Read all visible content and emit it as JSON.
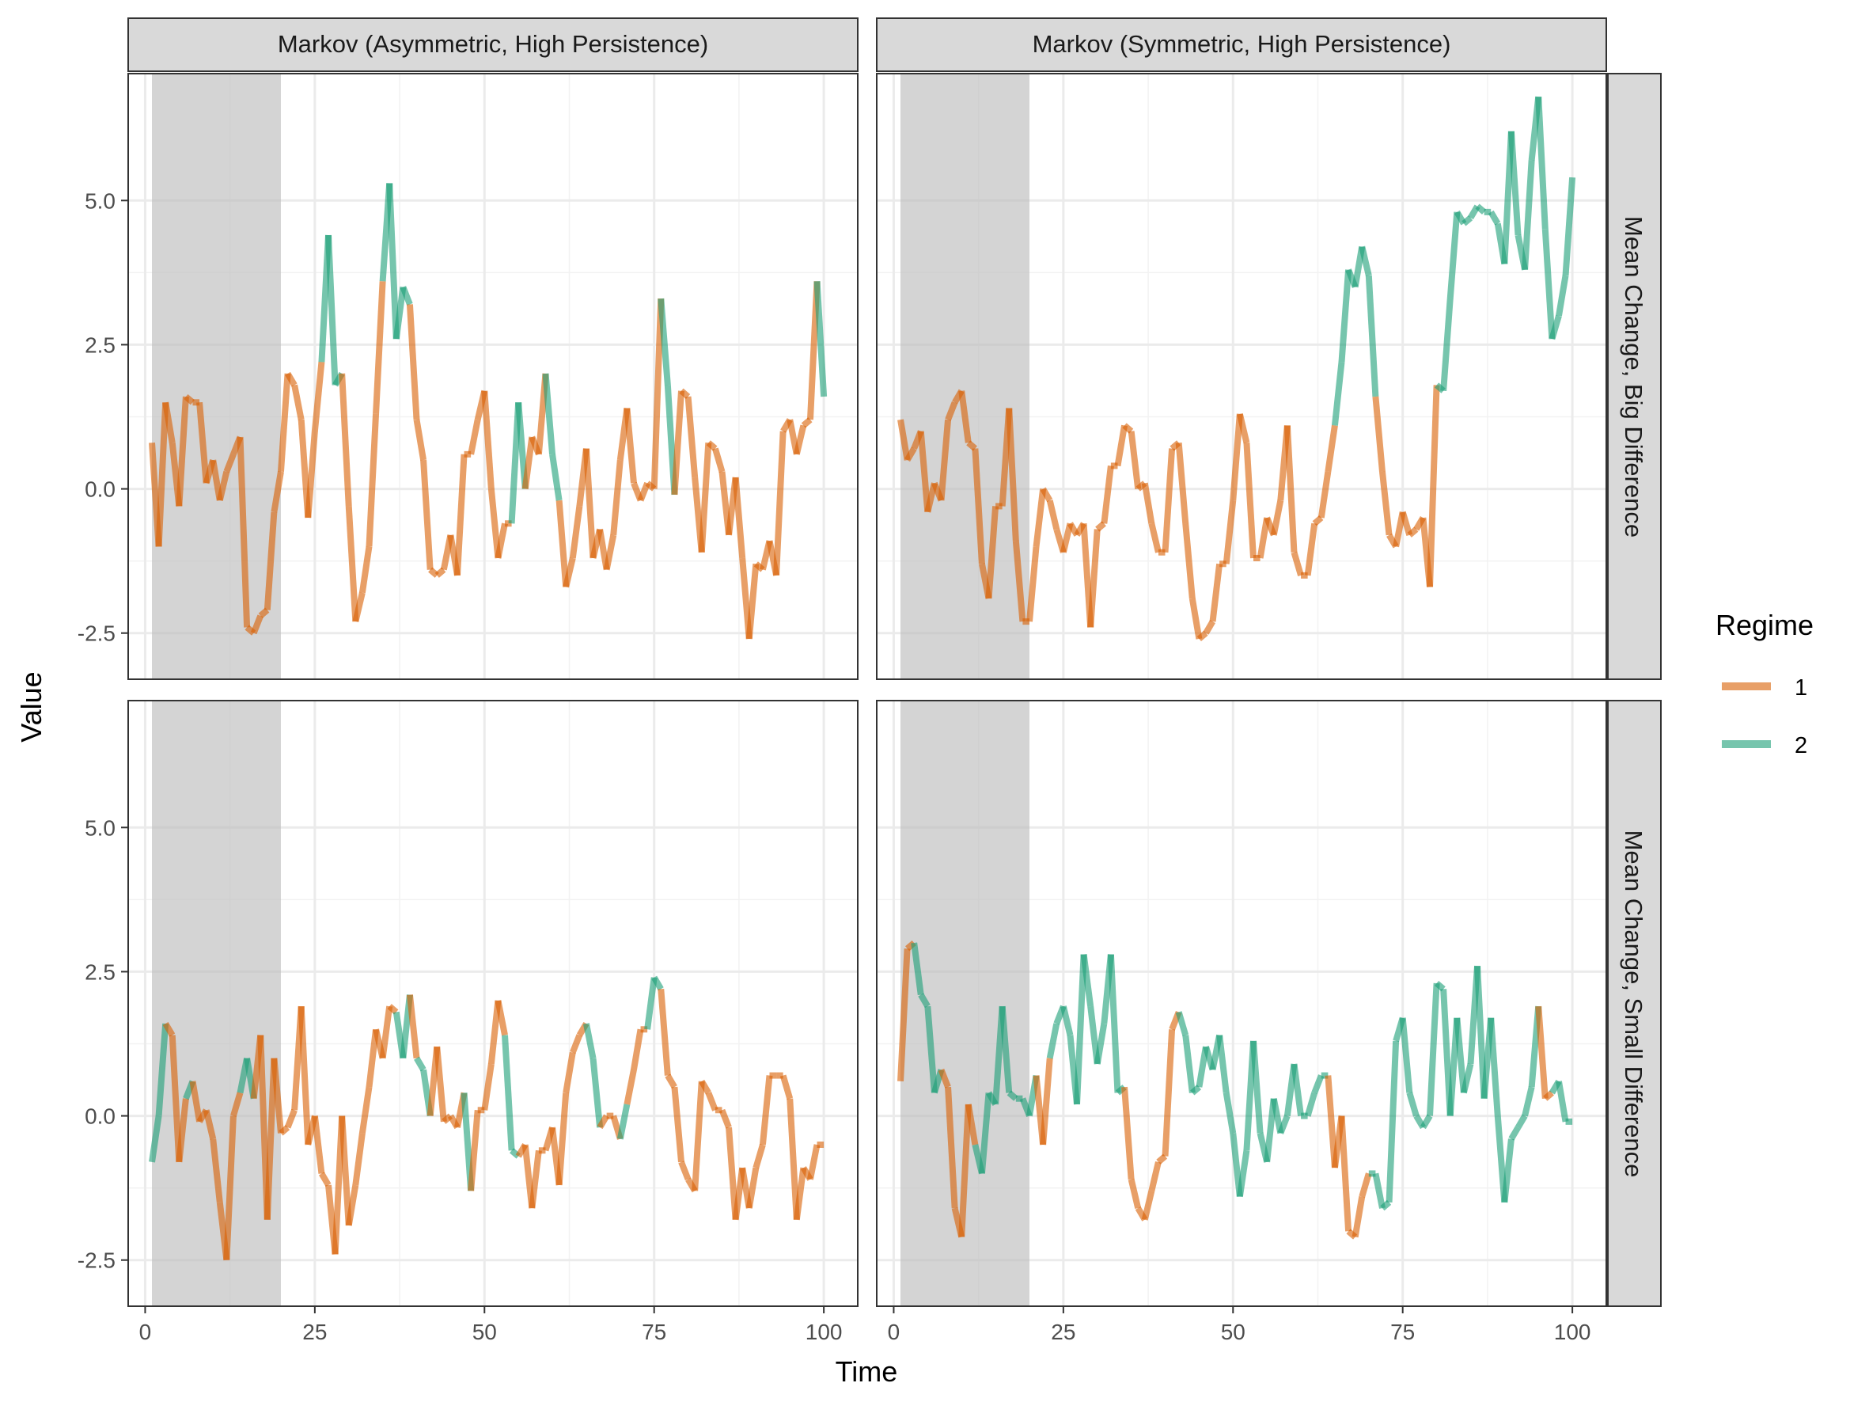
{
  "chart_data": {
    "type": "line",
    "facet_columns": [
      "Markov (Asymmetric, High Persistence)",
      "Markov (Symmetric, High Persistence)"
    ],
    "facet_rows": [
      "Mean Change, Big Difference",
      "Mean Change, Small Difference"
    ],
    "xlabel": "Time",
    "ylabel": "Value",
    "xlim": [
      -2.5,
      105
    ],
    "ylim": [
      -3.3,
      7.2
    ],
    "x_ticks": [
      0,
      25,
      50,
      75,
      100
    ],
    "x_tick_labels": [
      "0",
      "25",
      "50",
      "75",
      "100"
    ],
    "y_ticks": [
      -2.5,
      0,
      2.5,
      5
    ],
    "y_tick_labels": [
      "-2.5",
      "0.0",
      "2.5",
      "5.0"
    ],
    "shaded_interval": [
      1,
      20
    ],
    "grid": true,
    "legend": {
      "title": "Regime",
      "position": "right",
      "entries": [
        "1",
        "2"
      ]
    },
    "colors": {
      "1": "#D95F02",
      "2": "#1B9E77",
      "strip": "#D9D9D9",
      "shade": "#BDBDBD"
    },
    "panels": [
      {
        "column": "Markov (Asymmetric, High Persistence)",
        "row": "Mean Change, Big Difference",
        "y": [
          0.8,
          -1.0,
          1.5,
          0.8,
          -0.3,
          1.6,
          1.5,
          1.5,
          0.1,
          0.5,
          -0.2,
          0.3,
          0.6,
          0.9,
          -2.4,
          -2.5,
          -2.2,
          -2.1,
          -0.4,
          0.3,
          2.0,
          1.8,
          1.2,
          -0.5,
          1.0,
          2.2,
          4.4,
          1.8,
          2.0,
          -0.3,
          -2.3,
          -1.8,
          -1.0,
          1.3,
          3.6,
          5.3,
          2.6,
          3.5,
          3.2,
          1.2,
          0.5,
          -1.4,
          -1.5,
          -1.4,
          -0.8,
          -1.5,
          0.6,
          0.6,
          1.2,
          1.7,
          0.0,
          -1.2,
          -0.6,
          -0.6,
          1.5,
          0.0,
          0.9,
          0.6,
          2.0,
          0.6,
          -0.2,
          -1.7,
          -1.2,
          -0.3,
          0.7,
          -1.2,
          -0.7,
          -1.4,
          -0.8,
          0.5,
          1.4,
          0.1,
          -0.2,
          0.1,
          0.0,
          3.3,
          1.8,
          -0.1,
          1.7,
          1.6,
          0.2,
          -1.1,
          0.8,
          0.7,
          0.3,
          -0.8,
          0.2,
          -1.2,
          -2.6,
          -1.3,
          -1.4,
          -0.9,
          -1.5,
          1.0,
          1.2,
          0.6,
          1.1,
          1.2,
          3.6,
          1.6
        ],
        "regime": [
          1,
          1,
          1,
          1,
          1,
          1,
          1,
          1,
          1,
          1,
          1,
          1,
          1,
          1,
          1,
          1,
          1,
          1,
          1,
          1,
          1,
          1,
          1,
          1,
          1,
          2,
          2,
          2,
          1,
          1,
          1,
          1,
          1,
          1,
          2,
          2,
          2,
          2,
          1,
          1,
          1,
          1,
          1,
          1,
          1,
          1,
          1,
          1,
          1,
          1,
          1,
          1,
          1,
          2,
          2,
          1,
          1,
          1,
          2,
          2,
          1,
          1,
          1,
          1,
          1,
          1,
          1,
          1,
          1,
          1,
          1,
          1,
          1,
          1,
          1,
          2,
          2,
          1,
          1,
          1,
          1,
          1,
          1,
          1,
          1,
          1,
          1,
          1,
          1,
          1,
          1,
          1,
          1,
          1,
          1,
          1,
          1,
          1,
          2,
          2
        ]
      },
      {
        "column": "Markov (Symmetric, High Persistence)",
        "row": "Mean Change, Big Difference",
        "y": [
          1.2,
          0.5,
          0.7,
          1.0,
          -0.4,
          0.1,
          -0.2,
          1.2,
          1.5,
          1.7,
          0.8,
          0.7,
          -1.3,
          -1.9,
          -0.3,
          -0.3,
          1.4,
          -0.9,
          -2.3,
          -2.3,
          -1.0,
          0.0,
          -0.2,
          -0.7,
          -1.1,
          -0.6,
          -0.8,
          -0.6,
          -2.4,
          -0.7,
          -0.6,
          0.4,
          0.4,
          1.1,
          1.0,
          0.0,
          0.1,
          -0.6,
          -1.1,
          -1.1,
          0.7,
          0.8,
          -0.6,
          -1.9,
          -2.6,
          -2.5,
          -2.3,
          -1.3,
          -1.3,
          -0.2,
          1.3,
          0.8,
          -1.2,
          -1.2,
          -0.5,
          -0.8,
          -0.2,
          1.1,
          -1.1,
          -1.5,
          -1.5,
          -0.6,
          -0.5,
          0.3,
          1.1,
          2.2,
          3.8,
          3.5,
          4.2,
          3.7,
          1.6,
          0.3,
          -0.8,
          -1.0,
          -0.4,
          -0.8,
          -0.7,
          -0.5,
          -1.7,
          1.8,
          1.7,
          3.3,
          4.8,
          4.6,
          4.7,
          4.9,
          4.8,
          4.8,
          4.6,
          3.9,
          6.2,
          4.4,
          3.8,
          5.7,
          6.8,
          4.5,
          2.6,
          3.0,
          3.7,
          5.4
        ],
        "regime": [
          1,
          1,
          1,
          1,
          1,
          1,
          1,
          1,
          1,
          1,
          1,
          1,
          1,
          1,
          1,
          1,
          1,
          1,
          1,
          1,
          1,
          1,
          1,
          1,
          1,
          1,
          1,
          1,
          1,
          1,
          1,
          1,
          1,
          1,
          1,
          1,
          1,
          1,
          1,
          1,
          1,
          1,
          1,
          1,
          1,
          1,
          1,
          1,
          1,
          1,
          1,
          1,
          1,
          1,
          1,
          1,
          1,
          1,
          1,
          1,
          1,
          1,
          1,
          1,
          2,
          2,
          2,
          2,
          2,
          2,
          1,
          1,
          1,
          1,
          1,
          1,
          1,
          1,
          1,
          2,
          2,
          2,
          2,
          2,
          2,
          2,
          2,
          2,
          2,
          2,
          2,
          2,
          2,
          2,
          2,
          2,
          2,
          2,
          2,
          2
        ]
      },
      {
        "column": "Markov (Asymmetric, High Persistence)",
        "row": "Mean Change, Small Difference",
        "y": [
          -0.8,
          0.0,
          1.6,
          1.4,
          -0.8,
          0.3,
          0.6,
          -0.1,
          0.1,
          -0.4,
          -1.5,
          -2.5,
          0.0,
          0.4,
          1.0,
          0.3,
          1.4,
          -1.8,
          1.0,
          -0.3,
          -0.2,
          0.1,
          1.9,
          -0.5,
          0.0,
          -1.0,
          -1.2,
          -2.4,
          0.0,
          -1.9,
          -1.2,
          -0.3,
          0.5,
          1.5,
          1.0,
          1.9,
          1.8,
          1.0,
          2.1,
          1.0,
          0.8,
          0.0,
          1.2,
          -0.1,
          0.0,
          -0.2,
          0.4,
          -1.3,
          0.1,
          0.1,
          0.9,
          2.0,
          1.4,
          -0.6,
          -0.7,
          -0.5,
          -1.6,
          -0.6,
          -0.6,
          -0.2,
          -1.2,
          0.4,
          1.1,
          1.4,
          1.6,
          1.0,
          -0.2,
          0.0,
          0.0,
          -0.4,
          0.2,
          0.8,
          1.5,
          1.5,
          2.4,
          2.2,
          0.7,
          0.5,
          -0.8,
          -1.1,
          -1.3,
          0.6,
          0.4,
          0.1,
          0.1,
          -0.2,
          -1.8,
          -0.9,
          -1.6,
          -0.9,
          -0.5,
          0.7,
          0.7,
          0.7,
          0.3,
          -1.8,
          -0.9,
          -1.1,
          -0.5,
          -0.5
        ],
        "regime": [
          2,
          2,
          1,
          1,
          1,
          2,
          1,
          1,
          1,
          1,
          1,
          1,
          1,
          2,
          2,
          1,
          1,
          1,
          1,
          1,
          1,
          1,
          1,
          1,
          1,
          1,
          1,
          1,
          1,
          1,
          1,
          1,
          1,
          1,
          1,
          1,
          2,
          2,
          1,
          2,
          2,
          1,
          1,
          1,
          1,
          1,
          2,
          1,
          1,
          1,
          1,
          1,
          2,
          2,
          1,
          1,
          1,
          1,
          1,
          1,
          1,
          1,
          1,
          1,
          2,
          2,
          1,
          1,
          1,
          2,
          1,
          1,
          1,
          2,
          2,
          1,
          1,
          1,
          1,
          1,
          1,
          1,
          1,
          1,
          1,
          1,
          1,
          1,
          1,
          1,
          1,
          1,
          1,
          1,
          1,
          1,
          1,
          1,
          1,
          1
        ]
      },
      {
        "column": "Markov (Symmetric, High Persistence)",
        "row": "Mean Change, Small Difference",
        "y": [
          0.6,
          2.9,
          3.0,
          2.1,
          1.9,
          0.4,
          0.8,
          0.5,
          -1.6,
          -2.1,
          0.2,
          -0.5,
          -1.0,
          0.4,
          0.2,
          1.9,
          0.4,
          0.3,
          0.3,
          0.0,
          0.7,
          -0.5,
          1.0,
          1.6,
          1.9,
          1.4,
          0.2,
          2.8,
          1.9,
          0.9,
          1.6,
          2.8,
          0.4,
          0.5,
          -1.1,
          -1.6,
          -1.8,
          -1.3,
          -0.8,
          -0.7,
          1.5,
          1.8,
          1.4,
          0.4,
          0.5,
          1.2,
          0.8,
          1.4,
          0.4,
          -0.3,
          -1.4,
          -0.6,
          1.3,
          -0.3,
          -0.8,
          0.3,
          -0.3,
          0.0,
          0.9,
          0.0,
          0.0,
          0.4,
          0.7,
          0.7,
          -0.9,
          0.0,
          -2.0,
          -2.1,
          -1.4,
          -1.0,
          -1.0,
          -1.6,
          -1.5,
          1.3,
          1.7,
          0.4,
          0.0,
          -0.2,
          0.0,
          2.3,
          2.2,
          0.0,
          1.7,
          0.4,
          0.9,
          2.6,
          0.3,
          1.7,
          0.0,
          -1.5,
          -0.4,
          -0.2,
          0.0,
          0.5,
          1.9,
          0.3,
          0.4,
          0.6,
          -0.1,
          -0.1
        ],
        "regime": [
          1,
          1,
          2,
          2,
          2,
          2,
          1,
          1,
          1,
          1,
          1,
          2,
          2,
          2,
          2,
          2,
          2,
          2,
          2,
          2,
          1,
          1,
          2,
          2,
          2,
          2,
          2,
          2,
          2,
          2,
          2,
          2,
          2,
          1,
          1,
          1,
          1,
          1,
          1,
          1,
          1,
          2,
          2,
          2,
          2,
          2,
          2,
          2,
          2,
          2,
          2,
          2,
          2,
          2,
          2,
          2,
          2,
          2,
          2,
          2,
          2,
          2,
          2,
          1,
          1,
          1,
          1,
          1,
          1,
          2,
          2,
          2,
          2,
          2,
          2,
          2,
          2,
          2,
          2,
          2,
          2,
          2,
          2,
          2,
          2,
          2,
          2,
          2,
          2,
          2,
          2,
          2,
          2,
          2,
          1,
          1,
          2,
          2,
          2,
          2
        ]
      }
    ]
  }
}
